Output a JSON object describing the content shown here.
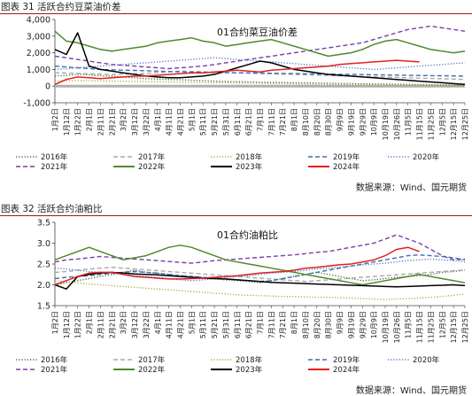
{
  "figures": [
    {
      "title": "图表 31 活跃合约豆菜油价差",
      "source": "数据来源：Wind、国元期货"
    },
    {
      "title": "图表 32 活跃合约油粕比",
      "source": "数据来源：Wind、国元期货"
    }
  ],
  "chart_data": [
    {
      "type": "line",
      "title": "01合约菜豆油价差",
      "xlabel": "",
      "ylabel": "",
      "ylim": [
        -1000,
        4000
      ],
      "yticks": [
        "-1,000",
        "0",
        "1,000",
        "2,000",
        "3,000",
        "4,000"
      ],
      "baseline": 0,
      "x_ticks": [
        "1月2日",
        "1月12日",
        "1月22日",
        "2月1日",
        "2月11日",
        "2月21日",
        "3月2日",
        "3月12日",
        "3月22日",
        "4月1日",
        "4月11日",
        "4月21日",
        "5月1日",
        "5月11日",
        "5月21日",
        "5月31日",
        "6月11日",
        "6月21日",
        "7月1日",
        "7月11日",
        "7月21日",
        "8月1日",
        "8月10日",
        "8月20日",
        "8月30日",
        "9月9日",
        "9月19日",
        "9月29日",
        "10月9日",
        "10月19日",
        "10月26日",
        "11月5日",
        "11月15日",
        "11月25日",
        "12月5日",
        "12月15日",
        "12月25日"
      ],
      "grid": false,
      "legend_position": "bottom",
      "series": [
        {
          "name": "2016年",
          "color": "#4a6a3a",
          "style": "dotted",
          "values": [
            600,
            650,
            700,
            680,
            620,
            600,
            550,
            500,
            450,
            420,
            400,
            380,
            350,
            330,
            300,
            280,
            260,
            250,
            240,
            230,
            220,
            200,
            190,
            180,
            170,
            160,
            150,
            140,
            130,
            120,
            110,
            100,
            90,
            80,
            70,
            60,
            50
          ]
        },
        {
          "name": "2017年",
          "color": "#a9a9a9",
          "style": "dashed",
          "values": [
            800,
            780,
            760,
            740,
            720,
            700,
            720,
            740,
            760,
            800,
            850,
            900,
            880,
            860,
            840,
            820,
            800,
            780,
            760,
            740,
            720,
            700,
            680,
            660,
            640,
            620,
            600,
            580,
            560,
            540,
            520,
            500,
            480,
            460,
            440,
            420,
            400
          ]
        },
        {
          "name": "2018年",
          "color": "#b8a840",
          "style": "dotted",
          "values": [
            300,
            320,
            340,
            330,
            310,
            300,
            290,
            280,
            270,
            260,
            250,
            240,
            230,
            220,
            210,
            200,
            190,
            180,
            170,
            160,
            150,
            140,
            130,
            120,
            110,
            100,
            90,
            80,
            70,
            60,
            50,
            40,
            30,
            20,
            10,
            0,
            -20
          ]
        },
        {
          "name": "2019年",
          "color": "#3a6fb0",
          "style": "dashed",
          "values": [
            1200,
            1150,
            1100,
            1050,
            1000,
            980,
            960,
            940,
            920,
            900,
            880,
            860,
            840,
            830,
            820,
            810,
            800,
            790,
            780,
            770,
            760,
            750,
            740,
            730,
            720,
            710,
            700,
            690,
            680,
            670,
            660,
            650,
            640,
            630,
            620,
            610,
            600
          ]
        },
        {
          "name": "2020年",
          "color": "#5a78c8",
          "style": "dotted",
          "values": [
            1000,
            1050,
            1100,
            1150,
            1200,
            1250,
            1300,
            1350,
            1400,
            1450,
            1500,
            1550,
            1600,
            1650,
            1700,
            1650,
            1600,
            1550,
            1500,
            1450,
            1400,
            1350,
            1300,
            1250,
            1200,
            1150,
            1100,
            1050,
            1000,
            1050,
            1100,
            1150,
            1200,
            1250,
            1300,
            1350,
            1400
          ]
        },
        {
          "name": "2021年",
          "color": "#7a3fa8",
          "style": "dashed",
          "values": [
            1800,
            1700,
            1600,
            1500,
            1400,
            1300,
            1250,
            1200,
            1150,
            1100,
            1050,
            1100,
            1150,
            1200,
            1300,
            1400,
            1500,
            1600,
            1700,
            1800,
            1900,
            2000,
            2100,
            2200,
            2300,
            2400,
            2500,
            2600,
            2800,
            3000,
            3200,
            3400,
            3500,
            3600,
            3500,
            3400,
            3300
          ]
        },
        {
          "name": "2022年",
          "color": "#4e8a2e",
          "style": "solid",
          "values": [
            3300,
            2700,
            2600,
            2400,
            2200,
            2100,
            2200,
            2300,
            2400,
            2600,
            2700,
            2800,
            2900,
            2700,
            2600,
            2400,
            2500,
            2600,
            2700,
            2800,
            2600,
            2400,
            2200,
            2000,
            1800,
            1900,
            2000,
            2200,
            2500,
            2700,
            2800,
            2600,
            2400,
            2200,
            2100,
            2000,
            2100
          ]
        },
        {
          "name": "2023年",
          "color": "#000000",
          "style": "solid",
          "values": [
            2200,
            1900,
            3200,
            1200,
            1000,
            900,
            800,
            700,
            600,
            550,
            500,
            500,
            550,
            600,
            700,
            900,
            1100,
            1300,
            1500,
            1400,
            1200,
            1000,
            900,
            800,
            700,
            650,
            600,
            550,
            500,
            450,
            400,
            350,
            300,
            250,
            200,
            150,
            100
          ]
        },
        {
          "name": "2024年",
          "color": "#e02020",
          "style": "solid",
          "values": [
            100,
            400,
            550,
            500,
            450,
            500,
            550,
            600,
            600,
            650,
            700,
            750,
            800,
            800,
            850,
            900,
            950,
            900,
            850,
            950,
            1000,
            1050,
            1100,
            1150,
            1200,
            1300,
            1350,
            1400,
            1450,
            1500,
            1550,
            1500,
            1450
          ]
        }
      ]
    },
    {
      "type": "line",
      "title": "01合约油粕比",
      "xlabel": "",
      "ylabel": "",
      "ylim": [
        1.5,
        3.5
      ],
      "yticks": [
        "1.5",
        "2.0",
        "2.5",
        "3.0",
        "3.5"
      ],
      "x_ticks": [
        "1月2日",
        "1月12日",
        "1月22日",
        "2月1日",
        "2月11日",
        "2月21日",
        "3月2日",
        "3月12日",
        "3月22日",
        "4月1日",
        "4月11日",
        "4月21日",
        "5月1日",
        "5月11日",
        "5月21日",
        "5月31日",
        "6月11日",
        "6月21日",
        "7月1日",
        "7月11日",
        "7月21日",
        "8月1日",
        "8月10日",
        "8月20日",
        "8月30日",
        "9月9日",
        "9月19日",
        "9月29日",
        "10月9日",
        "10月19日",
        "10月26日",
        "11月5日",
        "11月15日",
        "11月25日",
        "12月5日",
        "12月15日",
        "12月25日"
      ],
      "grid": false,
      "legend_position": "bottom",
      "series": [
        {
          "name": "2016年",
          "color": "#4a6a3a",
          "style": "dotted",
          "values": [
            2.0,
            2.05,
            2.1,
            2.15,
            2.2,
            2.25,
            2.3,
            2.35,
            2.3,
            2.28,
            2.25,
            2.22,
            2.2,
            2.18,
            2.15,
            2.12,
            2.1,
            2.08,
            2.05,
            2.1,
            2.15,
            2.2,
            2.25,
            2.3,
            2.25,
            2.2,
            2.15,
            2.1,
            2.12,
            2.15,
            2.18,
            2.2,
            2.22,
            2.25,
            2.3,
            2.32,
            2.35
          ]
        },
        {
          "name": "2017年",
          "color": "#a9a9a9",
          "style": "dashed",
          "values": [
            2.3,
            2.32,
            2.35,
            2.38,
            2.4,
            2.42,
            2.4,
            2.38,
            2.36,
            2.34,
            2.32,
            2.3,
            2.28,
            2.26,
            2.24,
            2.22,
            2.2,
            2.18,
            2.16,
            2.14,
            2.12,
            2.1,
            2.08,
            2.1,
            2.12,
            2.14,
            2.16,
            2.18,
            2.2,
            2.22,
            2.24,
            2.26,
            2.28,
            2.3,
            2.32,
            2.34,
            2.35
          ]
        },
        {
          "name": "2018年",
          "color": "#b8a840",
          "style": "dotted",
          "values": [
            2.1,
            2.08,
            2.05,
            2.02,
            2.0,
            1.98,
            1.96,
            1.94,
            1.92,
            1.9,
            1.88,
            1.86,
            1.84,
            1.82,
            1.8,
            1.78,
            1.76,
            1.75,
            1.74,
            1.73,
            1.72,
            1.72,
            1.71,
            1.7,
            1.7,
            1.69,
            1.68,
            1.67,
            1.66,
            1.65,
            1.66,
            1.67,
            1.68,
            1.7,
            1.72,
            1.75,
            1.78
          ]
        },
        {
          "name": "2019年",
          "color": "#3a6fb0",
          "style": "dashed",
          "values": [
            2.15,
            2.18,
            2.2,
            2.22,
            2.25,
            2.28,
            2.3,
            2.32,
            2.3,
            2.28,
            2.25,
            2.22,
            2.2,
            2.18,
            2.16,
            2.14,
            2.12,
            2.1,
            2.08,
            2.1,
            2.15,
            2.2,
            2.25,
            2.3,
            2.35,
            2.4,
            2.45,
            2.5,
            2.55,
            2.6,
            2.65,
            2.7,
            2.72,
            2.7,
            2.68,
            2.65,
            2.6
          ]
        },
        {
          "name": "2020年",
          "color": "#5a78c8",
          "style": "dotted",
          "values": [
            2.4,
            2.38,
            2.35,
            2.32,
            2.3,
            2.28,
            2.25,
            2.22,
            2.2,
            2.18,
            2.15,
            2.12,
            2.1,
            2.12,
            2.15,
            2.18,
            2.2,
            2.22,
            2.25,
            2.28,
            2.3,
            2.32,
            2.35,
            2.38,
            2.4,
            2.42,
            2.45,
            2.48,
            2.5,
            2.52,
            2.55,
            2.58,
            2.6,
            2.62,
            2.6,
            2.58,
            2.55
          ]
        },
        {
          "name": "2021年",
          "color": "#7a3fa8",
          "style": "dashed",
          "values": [
            2.55,
            2.6,
            2.62,
            2.65,
            2.68,
            2.66,
            2.64,
            2.62,
            2.6,
            2.58,
            2.56,
            2.54,
            2.52,
            2.55,
            2.58,
            2.6,
            2.62,
            2.64,
            2.66,
            2.68,
            2.7,
            2.72,
            2.75,
            2.78,
            2.8,
            2.85,
            2.9,
            2.95,
            3.0,
            3.1,
            3.2,
            3.1,
            3.0,
            2.85,
            2.7,
            2.6,
            2.62
          ]
        },
        {
          "name": "2022年",
          "color": "#4e8a2e",
          "style": "solid",
          "values": [
            2.6,
            2.7,
            2.8,
            2.9,
            2.8,
            2.7,
            2.6,
            2.65,
            2.7,
            2.8,
            2.9,
            2.95,
            2.9,
            2.8,
            2.7,
            2.6,
            2.55,
            2.5,
            2.45,
            2.4,
            2.35,
            2.3,
            2.25,
            2.2,
            2.15,
            2.1,
            2.05,
            2.0,
            2.05,
            2.1,
            2.15,
            2.2,
            2.25,
            2.2,
            2.15,
            2.1,
            2.05
          ]
        },
        {
          "name": "2023年",
          "color": "#000000",
          "style": "solid",
          "values": [
            2.0,
            1.9,
            2.2,
            2.25,
            2.28,
            2.3,
            2.28,
            2.26,
            2.25,
            2.24,
            2.22,
            2.2,
            2.18,
            2.16,
            2.15,
            2.14,
            2.12,
            2.1,
            2.08,
            2.06,
            2.05,
            2.04,
            2.03,
            2.02,
            2.01,
            2.0,
            1.99,
            1.98,
            1.97,
            1.96,
            1.95,
            1.96,
            1.97,
            1.98,
            1.99,
            2.0,
            1.98
          ]
        },
        {
          "name": "2024年",
          "color": "#e02020",
          "style": "solid",
          "values": [
            2.0,
            2.1,
            2.2,
            2.28,
            2.3,
            2.3,
            2.25,
            2.2,
            2.18,
            2.16,
            2.14,
            2.14,
            2.15,
            2.16,
            2.18,
            2.2,
            2.22,
            2.25,
            2.28,
            2.3,
            2.32,
            2.35,
            2.4,
            2.42,
            2.45,
            2.48,
            2.5,
            2.55,
            2.6,
            2.7,
            2.85,
            2.9,
            2.8
          ]
        }
      ]
    }
  ]
}
